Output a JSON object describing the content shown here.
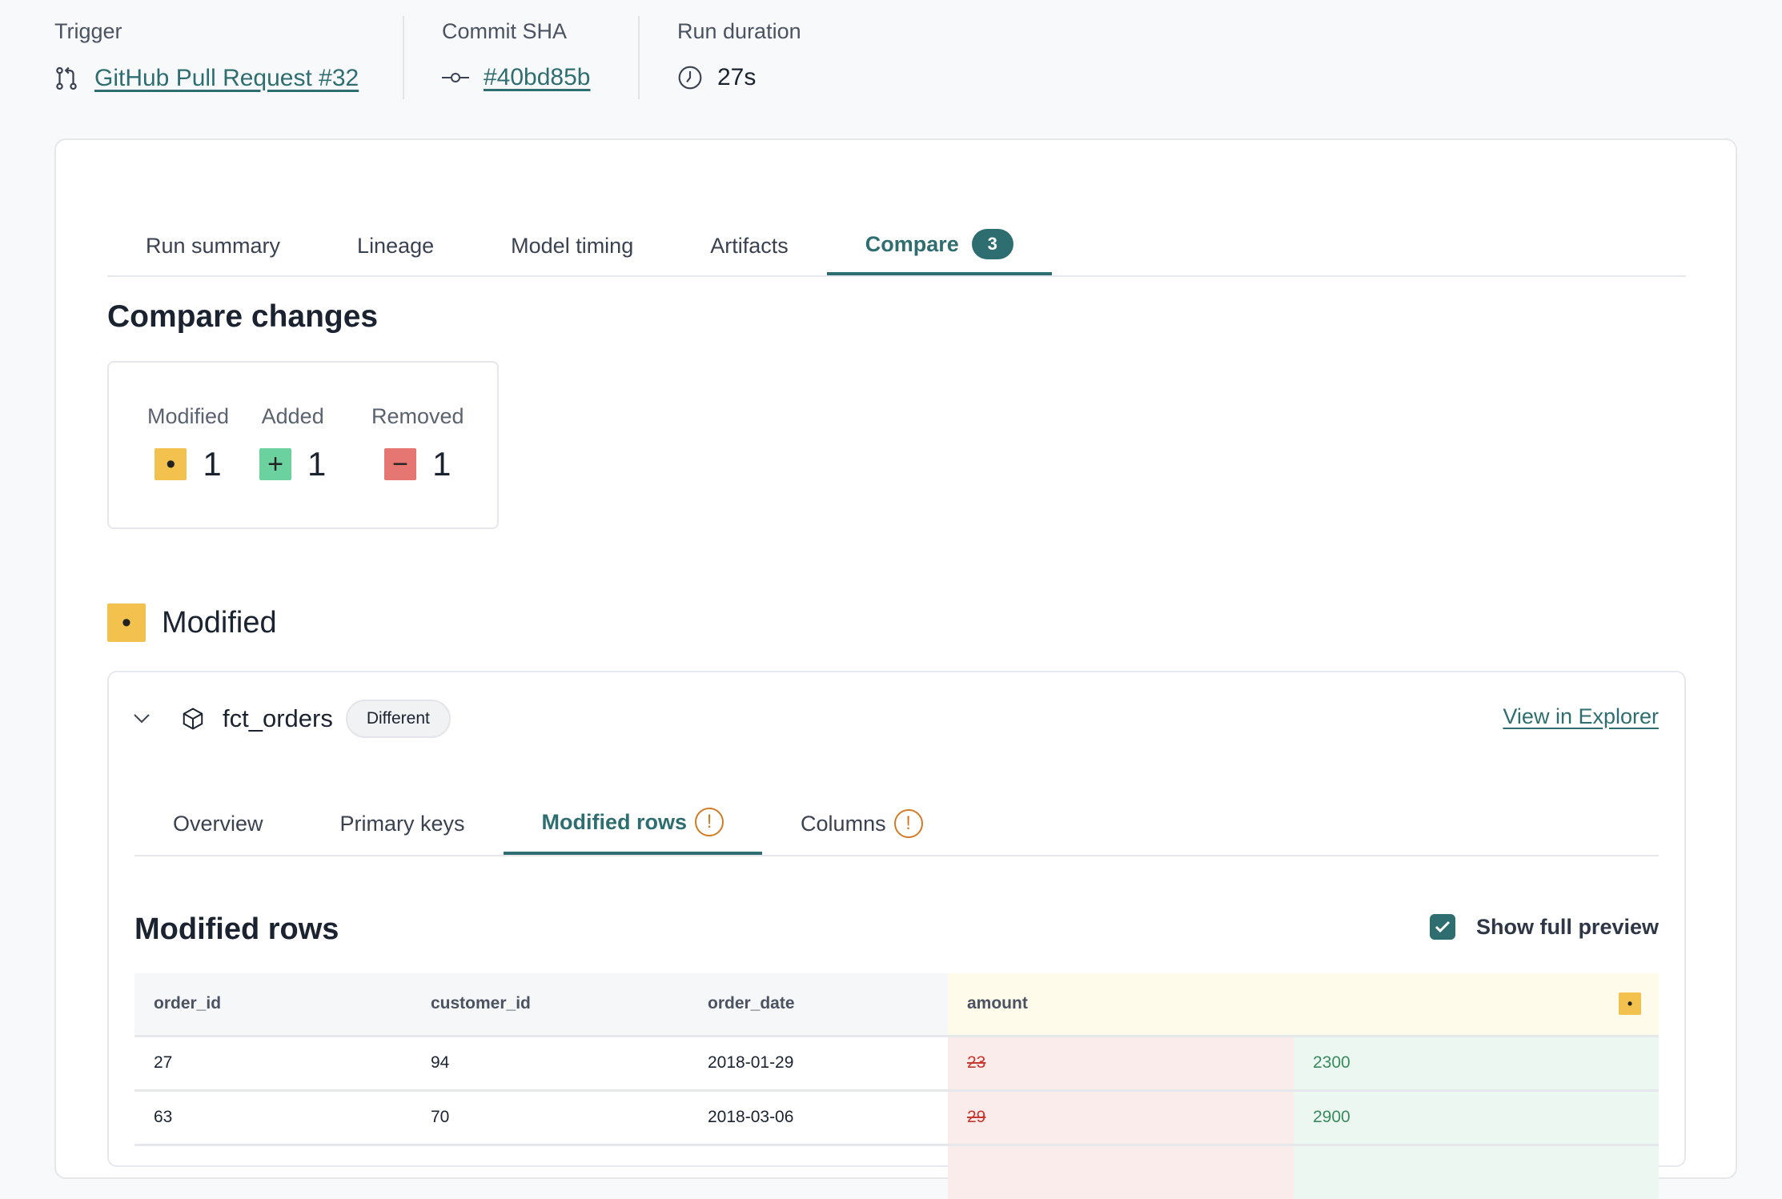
{
  "meta": {
    "trigger": {
      "label": "Trigger",
      "value": "GitHub Pull Request #32",
      "icon": "git-pull-request-icon"
    },
    "commit": {
      "label": "Commit SHA",
      "value": "#40bd85b",
      "icon": "git-commit-icon"
    },
    "duration": {
      "label": "Run duration",
      "value": "27s",
      "icon": "clock-icon"
    }
  },
  "tabs": [
    {
      "label": "Run summary"
    },
    {
      "label": "Lineage"
    },
    {
      "label": "Model timing"
    },
    {
      "label": "Artifacts"
    },
    {
      "label": "Compare",
      "badge": "3",
      "active": true
    }
  ],
  "compare": {
    "title": "Compare changes",
    "stats": [
      {
        "label": "Modified",
        "count": "1",
        "symbol": "•",
        "color": "#f2c14e"
      },
      {
        "label": "Added",
        "count": "1",
        "symbol": "+",
        "color": "#6bd19e"
      },
      {
        "label": "Removed",
        "count": "1",
        "symbol": "−",
        "color": "#e57672"
      }
    ],
    "section_title": "Modified",
    "model": {
      "name": "fct_orders",
      "status": "Different",
      "link": "View in Explorer",
      "subtabs": [
        {
          "label": "Overview"
        },
        {
          "label": "Primary keys"
        },
        {
          "label": "Modified rows",
          "warn": true,
          "active": true
        },
        {
          "label": "Columns",
          "warn": true
        }
      ],
      "rows_title": "Modified rows",
      "show_full_preview": {
        "label": "Show full preview",
        "checked": true
      },
      "table": {
        "columns": [
          "order_id",
          "customer_id",
          "order_date",
          "amount"
        ],
        "rows": [
          {
            "order_id": "27",
            "customer_id": "94",
            "order_date": "2018-01-29",
            "amount_old": "23",
            "amount_new": "2300"
          },
          {
            "order_id": "63",
            "customer_id": "70",
            "order_date": "2018-03-06",
            "amount_old": "29",
            "amount_new": "2900"
          }
        ]
      }
    }
  }
}
